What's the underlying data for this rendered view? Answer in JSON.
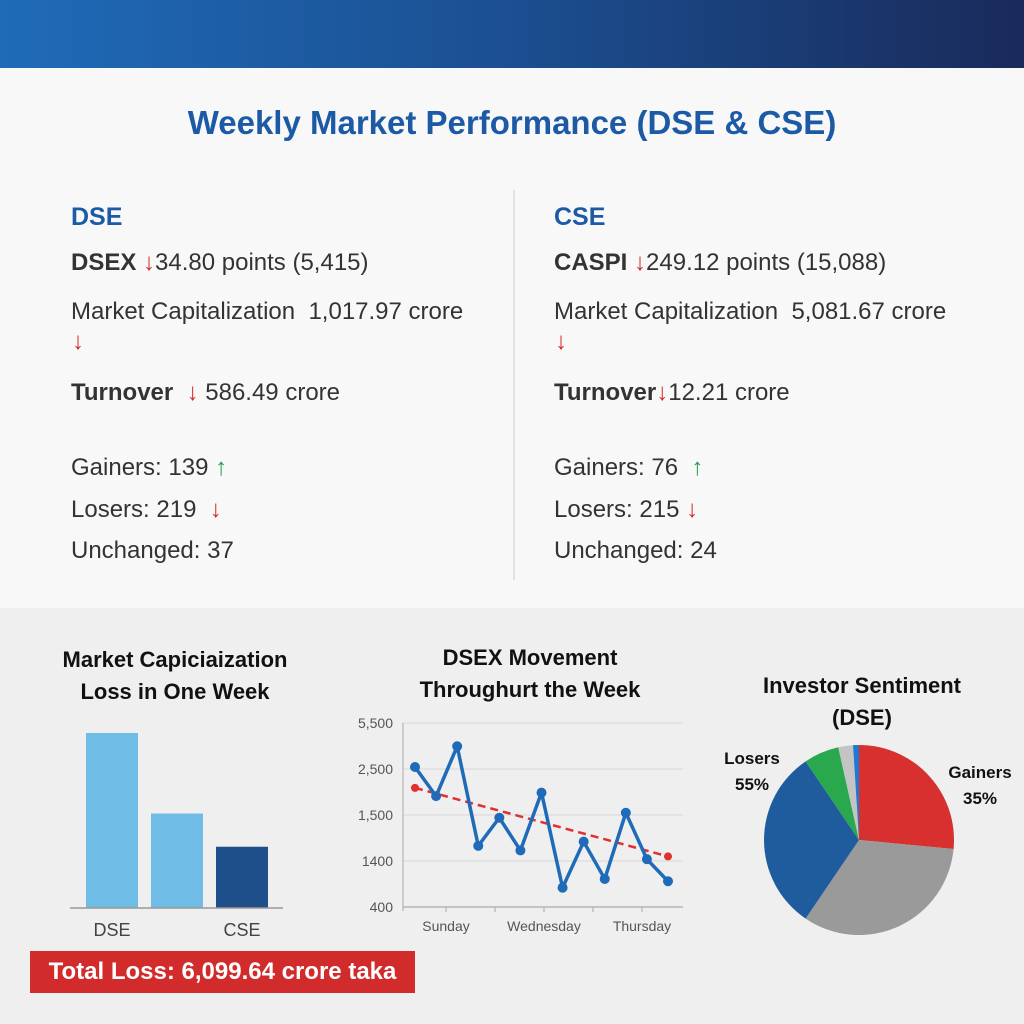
{
  "title": "Weekly Market Performance (DSE & CSE)",
  "dse": {
    "exchange": "DSE",
    "index_name": "DSEX",
    "index_change": "34.80 points (5,415)",
    "mcap_label": "Market Capitalization",
    "mcap_value": "1,017.97 crore",
    "turnover_label": "Turnover",
    "turnover_value": "586.49 crore",
    "gainers": "Gainers: 139",
    "losers": "Losers: 219",
    "unchanged": "Unchanged: 37"
  },
  "cse": {
    "exchange": "CSE",
    "index_name": "CASPI",
    "index_change": "249.12 points (15,088)",
    "mcap_label": "Market Capitalization",
    "mcap_value": "5,081.67 crore",
    "turnover_label": "Turnover",
    "turnover_value": "12.21 crore",
    "gainers": "Gainers: 76",
    "losers": "Losers: 215",
    "unchanged": "Unchanged: 24"
  },
  "banner": "Total Loss: 6,099.64 crore taka",
  "colors": {
    "accent": "#1d5aa6",
    "down": "#d32a2a",
    "up": "#1fa04a"
  },
  "chart_data": [
    {
      "type": "bar",
      "title_line1": "Market Capiciaization",
      "title_line2": "Loss in One Week",
      "categories": [
        "DSE",
        "",
        "CSE"
      ],
      "values": [
        100,
        54,
        35
      ],
      "colors": [
        "#6fbde6",
        "#6fbde6",
        "#1f4f8a"
      ],
      "ylim": [
        0,
        100
      ]
    },
    {
      "type": "line",
      "title_line1": "DSEX Movement",
      "title_line2": "Throughurt the Week",
      "yticks": [
        400,
        1400,
        1500,
        2500,
        5500
      ],
      "ytick_labels": [
        "400",
        "1400",
        "1,500",
        "2,500",
        "5,500"
      ],
      "xtick_labels": [
        "Sunday",
        "Wednesday",
        "Thursday"
      ],
      "series": [
        {
          "name": "DSEX",
          "values": [
            2630,
            1910,
            3980,
            1433,
            1494,
            1423,
            1986,
            820,
            1442,
            1010,
            1548,
            1404,
            960
          ],
          "color": "#1f6bb8"
        }
      ],
      "trend": {
        "start": 2090,
        "end": 1410,
        "color": "#e03030"
      }
    },
    {
      "type": "pie",
      "title_line1": "Investor Sentiment",
      "title_line2": "(DSE)",
      "slices": [
        {
          "value": 26.5,
          "color": "#d8302f"
        },
        {
          "value": 33,
          "color": "#9a9a9a"
        },
        {
          "value": 31,
          "color": "#1f5c9e"
        },
        {
          "value": 6,
          "color": "#2aa84d"
        },
        {
          "value": 2.5,
          "color": "#c4c4c4"
        },
        {
          "value": 1,
          "color": "#1f78d1"
        }
      ],
      "labels": [
        {
          "name": "Losers",
          "pct": "55%"
        },
        {
          "name": "Gainers",
          "pct": "35%"
        }
      ]
    }
  ]
}
